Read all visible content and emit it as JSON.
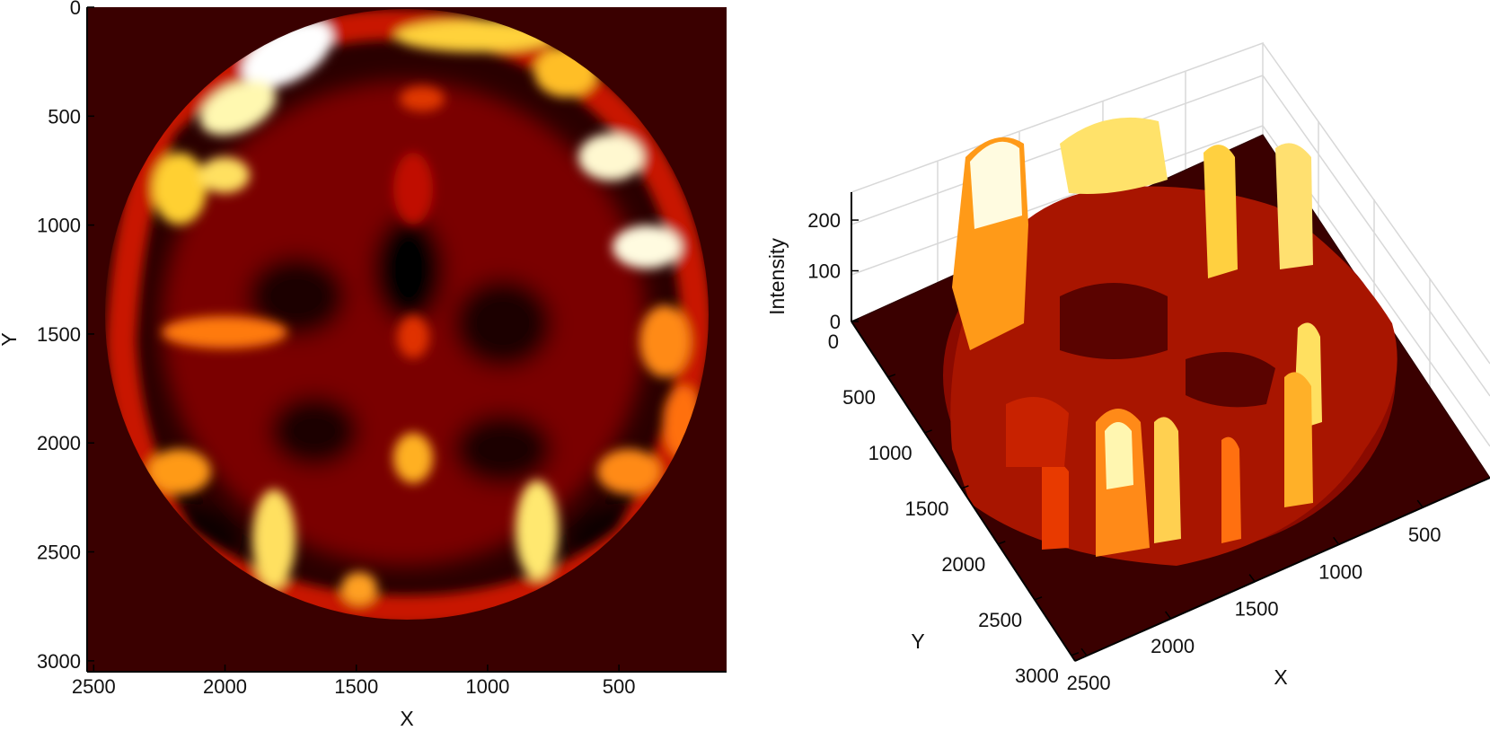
{
  "chart_data": [
    {
      "type": "heatmap",
      "title": "",
      "xlabel": "X",
      "ylabel": "Y",
      "xlim": [
        100,
        2500
      ],
      "ylim": [
        0,
        3050
      ],
      "x_reversed": true,
      "y_reversed": true,
      "xticks": [
        2500,
        2000,
        1500,
        1000,
        500
      ],
      "yticks": [
        0,
        500,
        1000,
        1500,
        2000,
        2500,
        3000
      ],
      "colormap": "hot",
      "colormap_colors": [
        "#000000",
        "#3a0000",
        "#8c0000",
        "#d62a00",
        "#ff6a00",
        "#ffb400",
        "#ffe85a",
        "#ffffff"
      ],
      "background_color": "#3a0000",
      "value_range": [
        0,
        255
      ],
      "content": "circular brain-slice intensity map: bright ring near the border, darker interior with scattered mid-intensity blobs"
    },
    {
      "type": "surface3d",
      "title": "",
      "xlabel": "X",
      "ylabel": "Y",
      "zlabel": "Intensity",
      "xticks": [
        2500,
        2000,
        1500,
        1000,
        500
      ],
      "yticks": [
        0,
        500,
        1000,
        1500,
        2000,
        2500,
        3000
      ],
      "zticks": [
        0,
        100,
        200
      ],
      "zlim": [
        0,
        255
      ],
      "colormap": "hot",
      "grid": true,
      "content": "3D surface of the same intensity field; tall peaks along the rim of the circular region"
    }
  ]
}
